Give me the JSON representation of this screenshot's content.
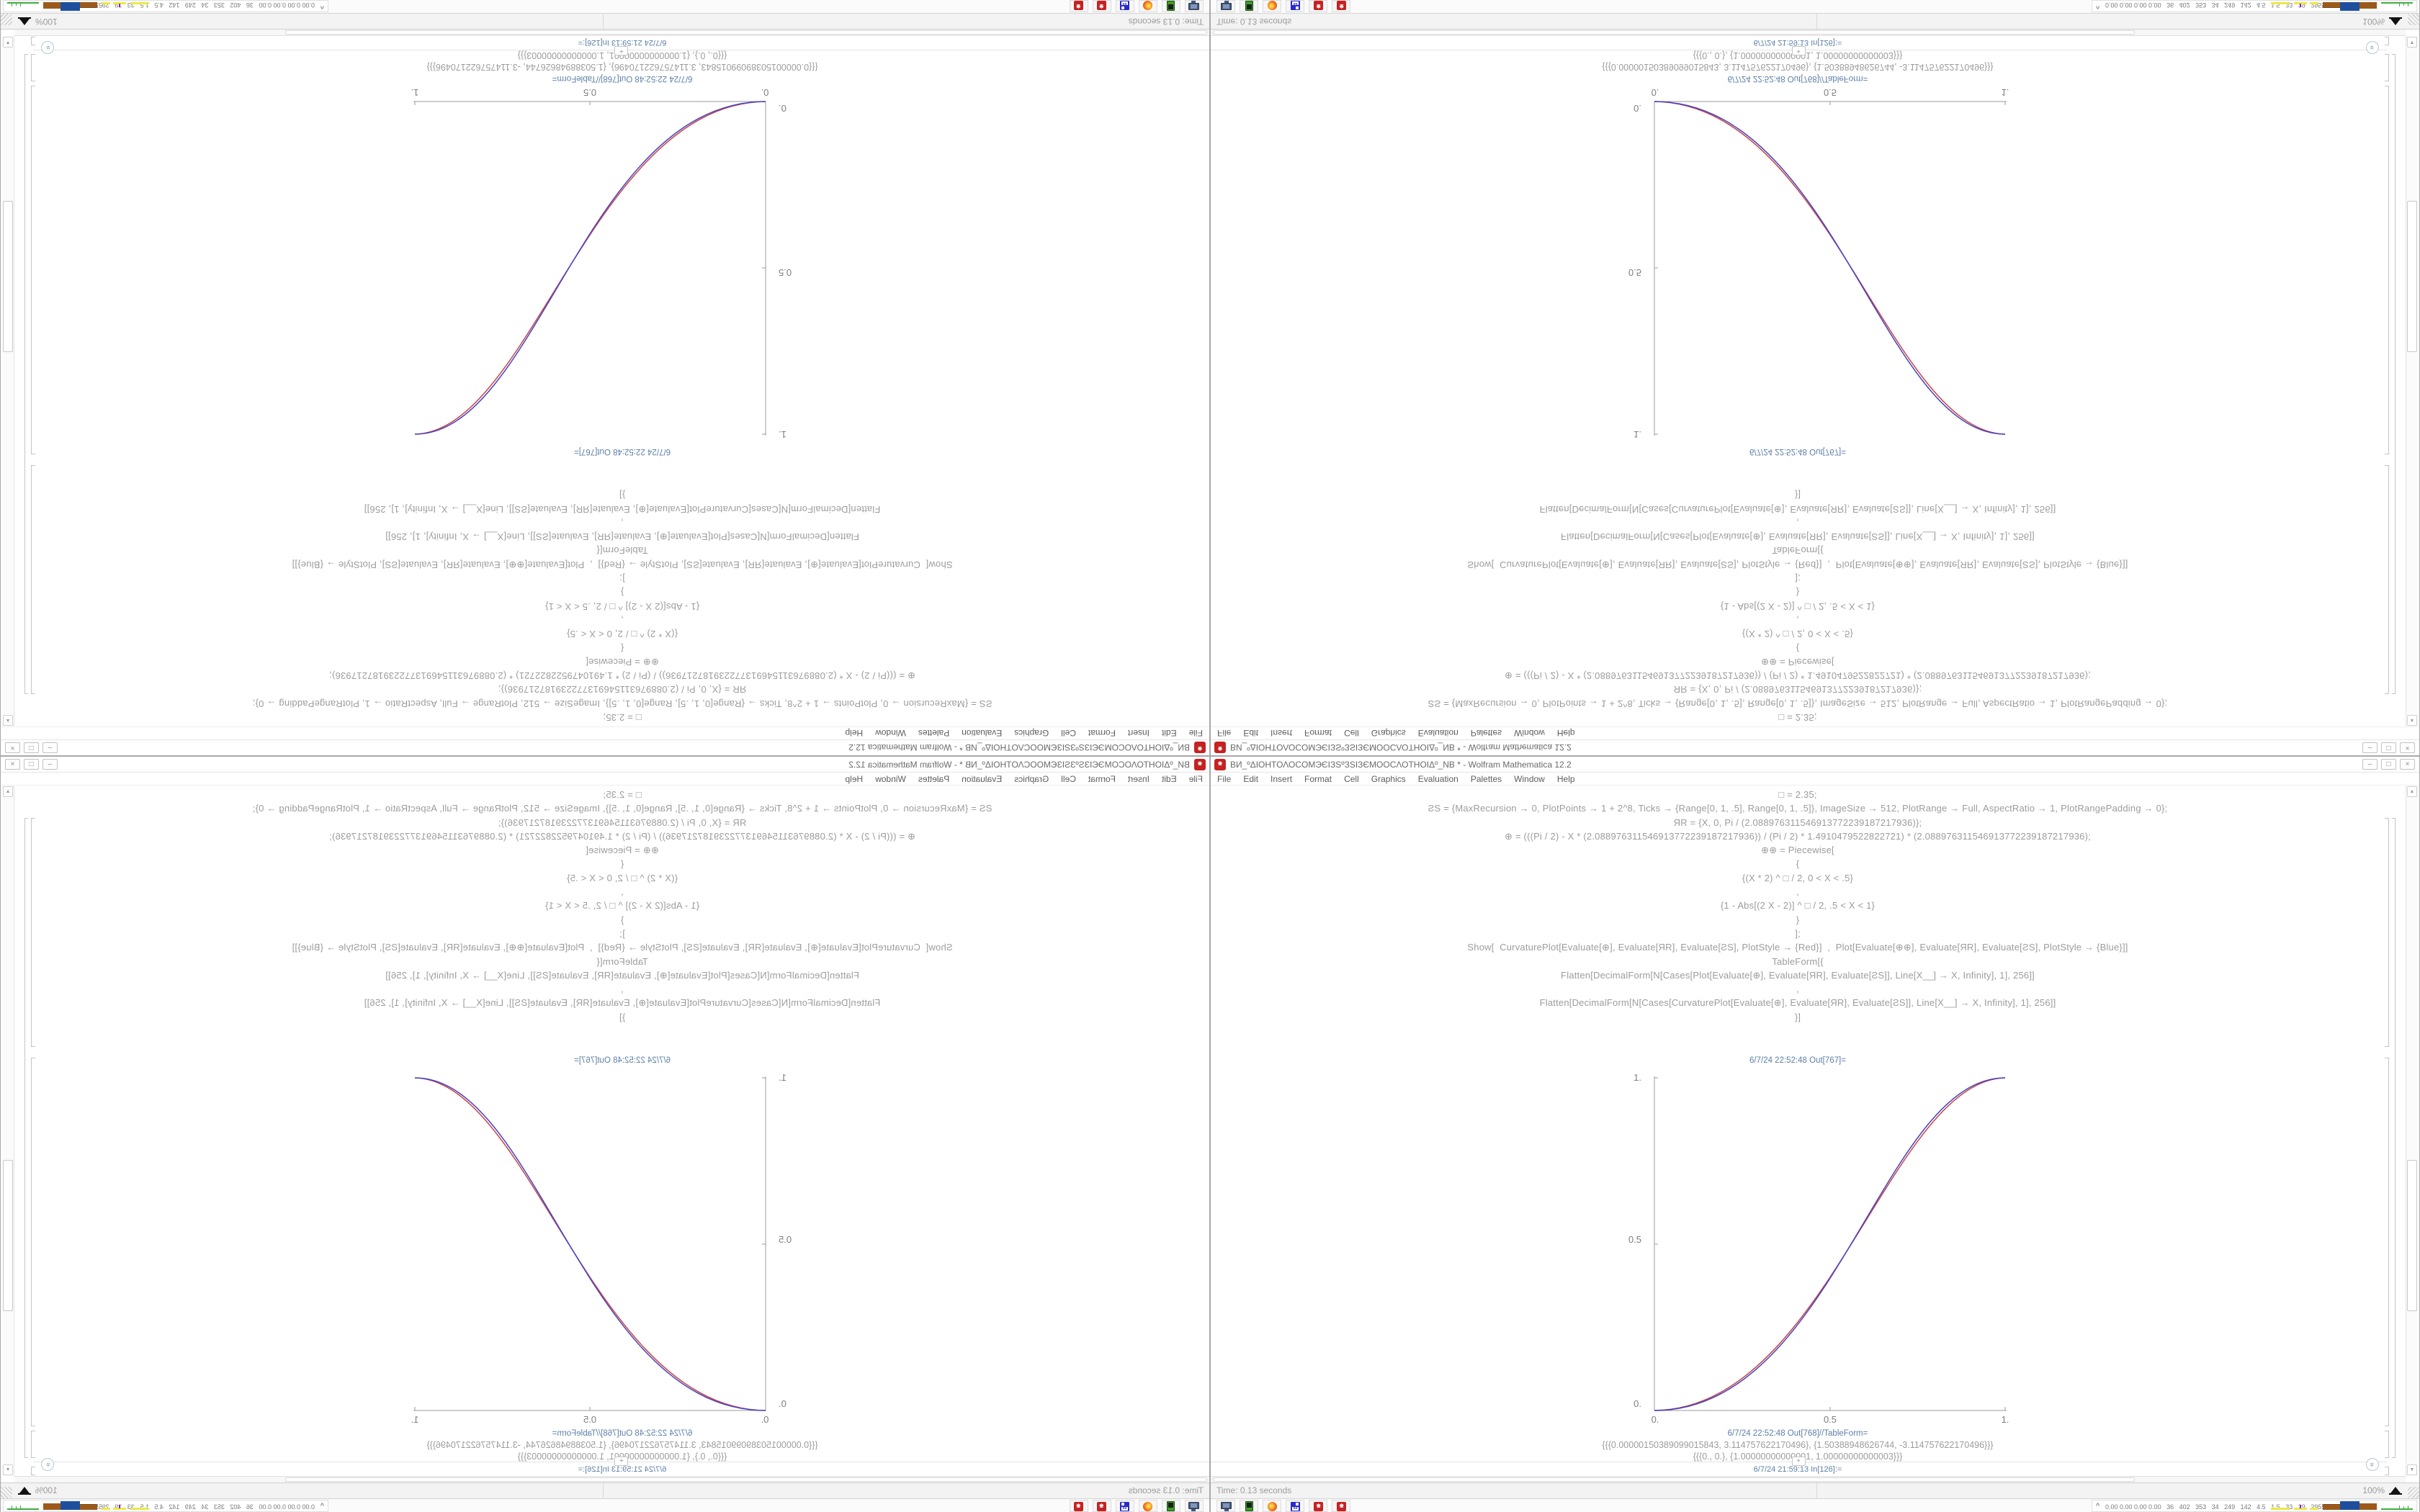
{
  "window": {
    "title": "ВИ_ºΔΙΟΗΤΟΛΟCOMЭЄІЗЅºЗЅІЗЄМООСΛΟΤΗΟΙΔº_NB * - Wolfram Mathematica 12.2",
    "menu": [
      "File",
      "Edit",
      "Insert",
      "Format",
      "Cell",
      "Graphics",
      "Evaluation",
      "Palettes",
      "Window",
      "Help"
    ],
    "controls": {
      "minimize": "–",
      "maximize": "□",
      "close": "×"
    }
  },
  "notebook": {
    "code_lines": [
      "□ = 2.35;",
      "ƧЅ = {MaxRecursion → 0, PlotPoints → 1 + 2^8, Ticks → {Range[0, 1, .5], Range[0, 1, .5]}, ImageSize → 512, PlotRange → Full, AspectRatio → 1, PlotRangePadding → 0};",
      "ЯR = {X, 0, Pi / (2.088976311546913772239187217936)};",
      "⊕ = (((Pi / 2) - X * (2.088976311546913772239187217936)) / (Pi / 2) * 1.4910479522822721) * (2.088976311546913772239187217936);",
      "⊕⊕ = Piecewise[",
      "{",
      "{(X * 2) ^ □ / 2, 0 < X < .5}",
      ",",
      "{1 - Abs[(2 X - 2)] ^ □ / 2, .5 < X < 1}",
      "}",
      "];",
      "Show[  CurvaturePlot[Evaluate[⊕], Evaluate[ЯR], Evaluate[ƧЅ], PlotStyle → {Red}]  ,  Plot[Evaluate[⊕⊕], Evaluate[ЯR], Evaluate[ƧЅ], PlotStyle → {Blue}]]",
      "TableForm[{",
      "Flatten[DecimalForm[N[Cases[Plot[Evaluate[⊕], Evaluate[ЯR], Evaluate[ƧЅ]], Line[X__] → X, Infinity], 1], 256]]",
      ",",
      "Flatten[DecimalForm[N[Cases[CurvaturePlot[Evaluate[⊕], Evaluate[ЯR], Evaluate[ƧЅ]], Line[X__] → X, Infinity], 1], 256]]",
      "}]"
    ],
    "out_plot_label": "6/7/24 22:52:48 Out[767]=",
    "out_table_label": "6/7/24 22:52:48 Out[768]//TableForm=",
    "table_rows": [
      "{{{0.00000150389099015843, 3.114757622170496}, {1.50388948626744, -3.114757622170496}}}",
      "{{{0., 0.}, {1.00000000000001, 1.00000000000003}}}"
    ],
    "in_label": "6/7/24 21:59:13 In[126]:=",
    "insert_plus": "+",
    "plot": {
      "x_ticks": [
        "0.",
        "0.5",
        "1."
      ],
      "y_ticks": [
        "0.",
        "0.5",
        "1."
      ],
      "x_range": [
        0,
        1
      ],
      "y_range": [
        0,
        1
      ],
      "description": "Two overlapping sigmoid S-curves from (0,0) to (1,1)",
      "series": [
        {
          "name": "CurvaturePlot (Red)",
          "color": "#cc4343"
        },
        {
          "name": "Plot (Blue)",
          "color": "#4343c8"
        }
      ]
    }
  },
  "statusbar": {
    "time": "Time: 0.13 seconds",
    "zoom": "100%"
  },
  "taskbar": {
    "icons": [
      "monitor",
      "handheld",
      "firefox",
      "floppy",
      "mathematica",
      "mathematica"
    ],
    "floppy_label": "64",
    "tray_chevron": "^",
    "tray_text": "0.00 0.00 0.00 0.00   36   402   353   34   249   142   4.5   1.5   33   29   2955 3811",
    "tray_chart_colors": {
      "yellow": "#ece84a",
      "purple": "#8a2ac0",
      "brown": "#9c5a1a",
      "blue": "#1e4f9e",
      "green": "#3fae3f"
    }
  },
  "glyphs": {
    "scroll_up": "▲",
    "scroll_down": "▼",
    "jump_chevron": "»",
    "star_x": "×",
    "star_plus": "+"
  }
}
